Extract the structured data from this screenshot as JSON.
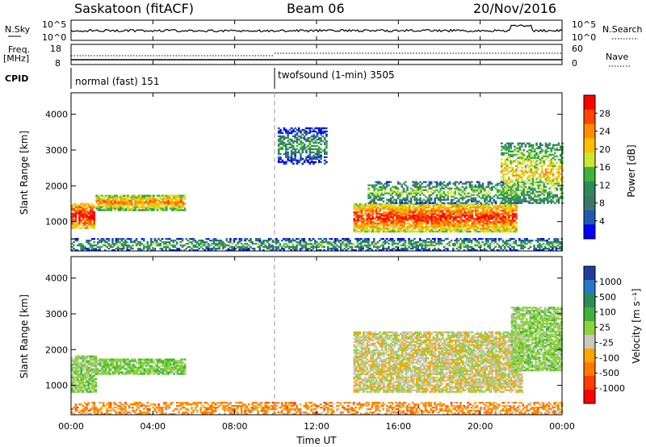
{
  "header": {
    "station": "Saskatoon (fitACF)",
    "beam": "Beam 06",
    "date": "20/Nov/2016"
  },
  "top_panels": {
    "nsky_label": "N.Sky",
    "nsky_ticks": [
      "10^5",
      "10^0"
    ],
    "nsearch_label": "N.Search",
    "nsearch_ticks": [
      "10^5",
      "10^0"
    ],
    "freq_label": "Freq.",
    "freq_unit": "[MHz]",
    "freq_ticks": [
      "18",
      "8"
    ],
    "nave_label": "Nave",
    "nave_ticks": [
      "60",
      "0"
    ],
    "cpid_label": "CPID",
    "cpid_modes": [
      {
        "label": "normal (fast) 151",
        "start_hour": 0
      },
      {
        "label": "twofsound (1-min) 3505",
        "start_hour": 10
      }
    ]
  },
  "power_colorbar": {
    "label": "Power [dB]",
    "ticks": [
      "28",
      "24",
      "20",
      "16",
      "12",
      "8",
      "4"
    ],
    "colors": [
      "#ff0000",
      "#ff4500",
      "#ff8c00",
      "#ffbf00",
      "#c8e632",
      "#3cb43c",
      "#2e8b57",
      "#3c7864",
      "#1e5ab4",
      "#0000ff"
    ]
  },
  "velocity_colorbar": {
    "label": "Velocity [m s⁻¹]",
    "ticks": [
      "1000",
      "500",
      "100",
      "25",
      "-25",
      "-100",
      "-500",
      "-1000"
    ],
    "colors": [
      "#1e3ca0",
      "#2878c8",
      "#2e8b57",
      "#3cb43c",
      "#8cd23c",
      "#c8c8c0",
      "#ffa500",
      "#ff7800",
      "#ff3c00",
      "#ff0000"
    ]
  },
  "axes": {
    "ylabel": "Slant Range [km]",
    "yticks": [
      "4000",
      "3000",
      "2000",
      "1000"
    ],
    "xlabel": "Time UT",
    "xticks": [
      "00:00",
      "04:00",
      "08:00",
      "12:00",
      "16:00",
      "20:00",
      "00:00"
    ]
  },
  "chart_data": [
    {
      "type": "heatmap",
      "title": "Power",
      "xlabel": "Time UT",
      "ylabel": "Slant Range [km]",
      "xlim": [
        0,
        24
      ],
      "ylim": [
        180,
        4600
      ],
      "regions": [
        {
          "t": [
            0.0,
            1.1
          ],
          "r": [
            800,
            1500
          ],
          "value_db": 24
        },
        {
          "t": [
            1.2,
            5.6
          ],
          "r": [
            1300,
            1750
          ],
          "value_db": 18
        },
        {
          "t": [
            13.8,
            21.8
          ],
          "r": [
            700,
            1500
          ],
          "value_db": 22
        },
        {
          "t": [
            14.5,
            22.0
          ],
          "r": [
            1500,
            2100
          ],
          "value_db": 10
        },
        {
          "t": [
            10.1,
            12.5
          ],
          "r": [
            2600,
            3600
          ],
          "value_db": 6
        },
        {
          "t": [
            21.0,
            24.0
          ],
          "r": [
            1500,
            3200
          ],
          "value_db": 14
        },
        {
          "t": [
            0.0,
            24.0
          ],
          "r": [
            180,
            500
          ],
          "value_db": 8
        }
      ]
    },
    {
      "type": "heatmap",
      "title": "Velocity",
      "xlabel": "Time UT",
      "ylabel": "Slant Range [km]",
      "xlim": [
        0,
        24
      ],
      "ylim": [
        180,
        4600
      ],
      "regions": [
        {
          "t": [
            0.0,
            1.2
          ],
          "r": [
            800,
            1800
          ],
          "value_ms": 60
        },
        {
          "t": [
            1.2,
            5.6
          ],
          "r": [
            1300,
            1750
          ],
          "value_ms": 80
        },
        {
          "t": [
            13.8,
            22.0
          ],
          "r": [
            800,
            2500
          ],
          "value_ms": 0
        },
        {
          "t": [
            21.5,
            24.0
          ],
          "r": [
            1400,
            3200
          ],
          "value_ms": 60
        },
        {
          "t": [
            0.0,
            24.0
          ],
          "r": [
            180,
            500
          ],
          "value_ms": -60
        }
      ]
    }
  ]
}
